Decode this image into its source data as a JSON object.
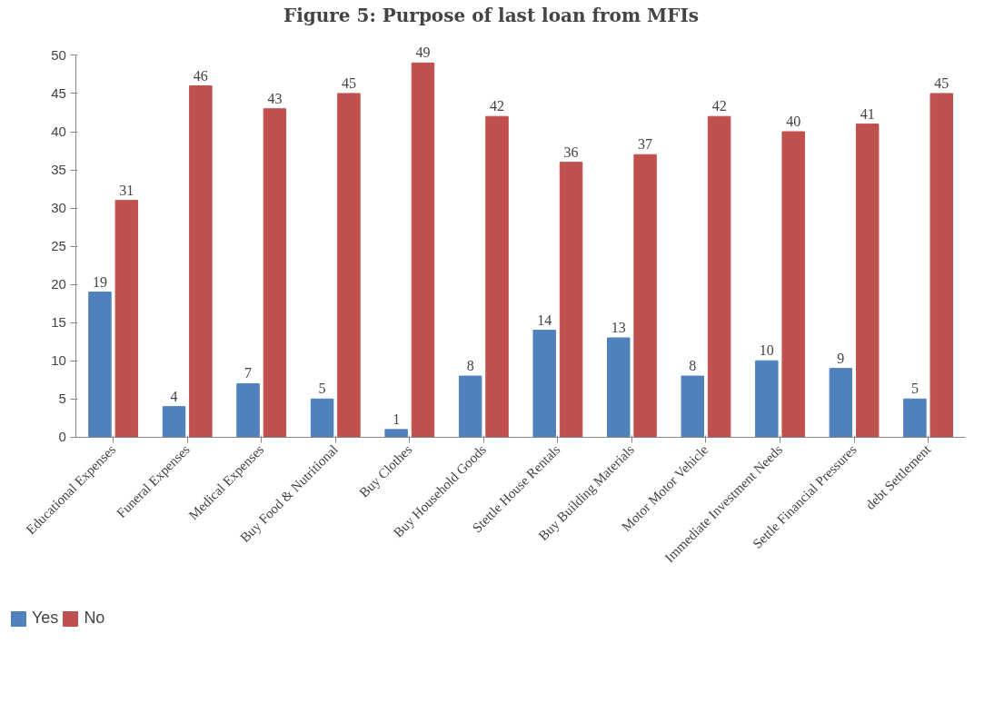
{
  "chart_data": {
    "type": "bar",
    "title": "Figure 5: Purpose of last loan from MFIs",
    "categories": [
      "Educational Expenses",
      "Funeral Expenses",
      "Medical Expenses",
      "Buy Food & Nutritional",
      "Buy Clothes",
      "Buy Household Goods",
      "Stettle House Rentals",
      "Buy Building Materials",
      "Motor Motor Vehicle",
      "Immediate Investment Needs",
      "Settle Financial Pressures",
      "debt Settlement"
    ],
    "series": [
      {
        "name": "Yes",
        "color": "#4f81bd",
        "values": [
          19,
          4,
          7,
          5,
          1,
          8,
          14,
          13,
          8,
          10,
          9,
          5
        ]
      },
      {
        "name": "No",
        "color": "#c0504d",
        "values": [
          31,
          46,
          43,
          45,
          49,
          42,
          36,
          37,
          42,
          40,
          41,
          45
        ]
      }
    ],
    "ylim": [
      0,
      50
    ],
    "yticks": [
      0,
      5,
      10,
      15,
      20,
      25,
      30,
      35,
      40,
      45,
      50
    ],
    "data_labels": true,
    "grid": false,
    "legend": "bottom left"
  }
}
